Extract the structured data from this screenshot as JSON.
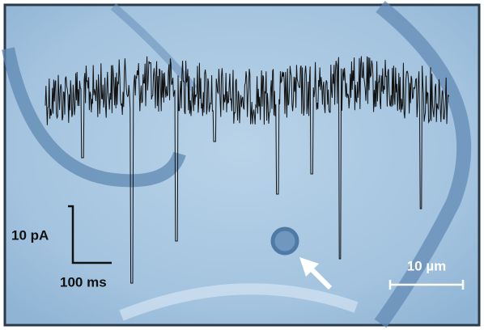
{
  "scale_bars": {
    "current": "10 pA",
    "time": "100 ms",
    "length": "10 µm"
  }
}
